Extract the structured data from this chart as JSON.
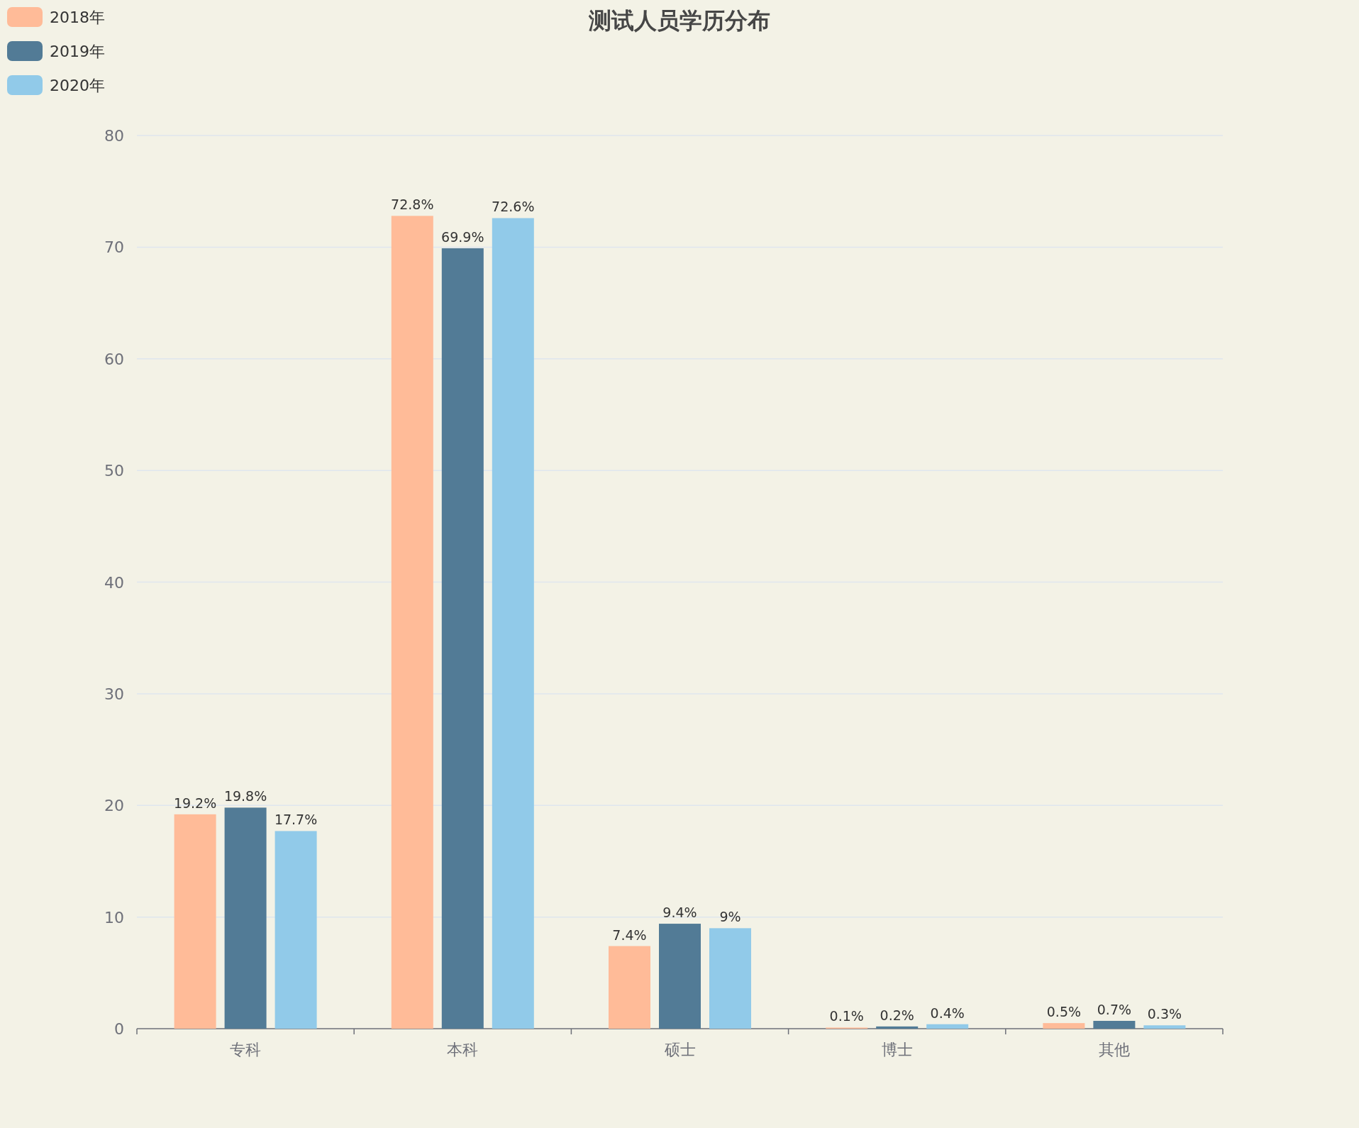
{
  "chart_data": {
    "type": "bar",
    "title": "测试人员学历分布",
    "categories": [
      "专科",
      "本科",
      "硕士",
      "博士",
      "其他"
    ],
    "series": [
      {
        "name": "2018年",
        "color": "#ffbb98",
        "values": [
          19.2,
          72.8,
          7.4,
          0.1,
          0.5
        ],
        "value_labels": [
          "19.2%",
          "72.8%",
          "7.4%",
          "0.1%",
          "0.5%"
        ]
      },
      {
        "name": "2019年",
        "color": "#527b96",
        "values": [
          19.8,
          69.9,
          9.4,
          0.2,
          0.7
        ],
        "value_labels": [
          "19.8%",
          "69.9%",
          "9.4%",
          "0.2%",
          "0.7%"
        ]
      },
      {
        "name": "2020年",
        "color": "#91cae9",
        "values": [
          17.7,
          72.6,
          9,
          0.4,
          0.3
        ],
        "value_labels": [
          "17.7%",
          "72.6%",
          "9%",
          "0.4%",
          "0.3%"
        ]
      }
    ],
    "ylim": [
      0,
      80
    ],
    "yticks": [
      0,
      10,
      20,
      30,
      40,
      50,
      60,
      70,
      80
    ],
    "grid": "y",
    "legend": "top left"
  }
}
